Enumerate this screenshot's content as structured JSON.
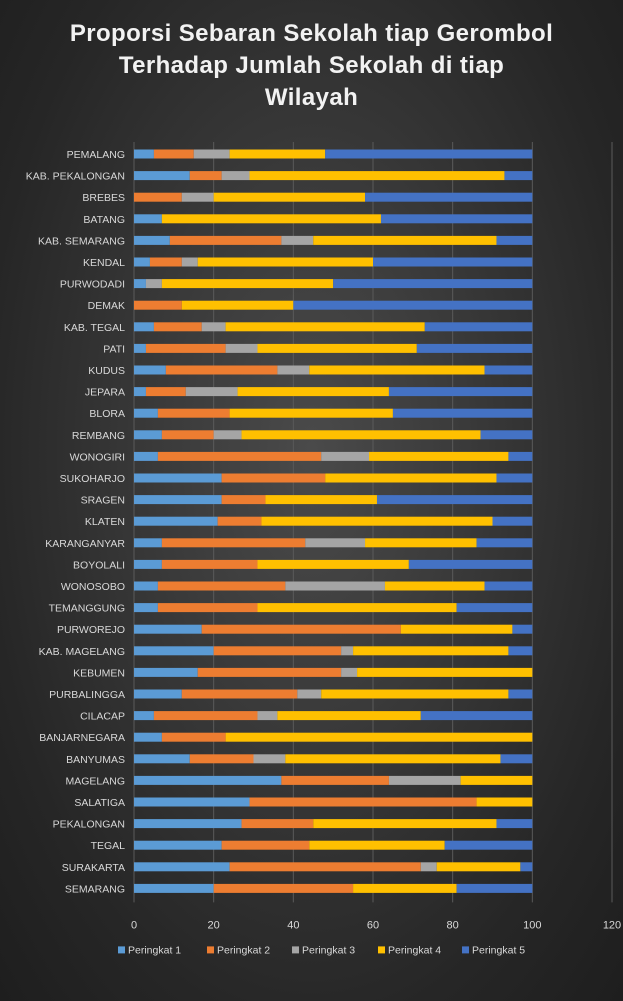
{
  "chart_data": {
    "type": "bar",
    "orientation": "horizontal",
    "stacked": true,
    "title": [
      "Proporsi Sebaran Sekolah tiap Gerombol",
      "Terhadap Jumlah Sekolah di tiap",
      "Wilayah"
    ],
    "xlabel": "",
    "ylabel": "",
    "xlim": [
      0,
      120
    ],
    "x_ticks": [
      0,
      20,
      40,
      60,
      80,
      100,
      120
    ],
    "grid": "vertical",
    "legend_position": "bottom",
    "categories": [
      "PEMALANG",
      "KAB. PEKALONGAN",
      "BREBES",
      "BATANG",
      "KAB. SEMARANG",
      "KENDAL",
      "PURWODADI",
      "DEMAK",
      "KAB. TEGAL",
      "PATI",
      "KUDUS",
      "JEPARA",
      "BLORA",
      "REMBANG",
      "WONOGIRI",
      "SUKOHARJO",
      "SRAGEN",
      "KLATEN",
      "KARANGANYAR",
      "BOYOLALI",
      "WONOSOBO",
      "TEMANGGUNG",
      "PURWOREJO",
      "KAB. MAGELANG",
      "KEBUMEN",
      "PURBALINGGA",
      "CILACAP",
      "BANJARNEGARA",
      "BANYUMAS",
      "MAGELANG",
      "SALATIGA",
      "PEKALONGAN",
      "TEGAL",
      "SURAKARTA",
      "SEMARANG"
    ],
    "series": [
      {
        "name": "Peringkat 1",
        "color": "#5b9bd5",
        "values": [
          5,
          14,
          0,
          7,
          9,
          4,
          3,
          0,
          5,
          3,
          8,
          3,
          6,
          7,
          6,
          22,
          22,
          21,
          7,
          7,
          6,
          6,
          17,
          20,
          16,
          12,
          5,
          7,
          14,
          37,
          29,
          27,
          22,
          24,
          20
        ]
      },
      {
        "name": "Peringkat 2",
        "color": "#ed7d31",
        "values": [
          10,
          8,
          12,
          0,
          28,
          8,
          0,
          12,
          12,
          20,
          28,
          10,
          18,
          13,
          41,
          26,
          11,
          11,
          36,
          24,
          32,
          25,
          50,
          32,
          36,
          29,
          26,
          16,
          16,
          27,
          57,
          18,
          22,
          48,
          35
        ]
      },
      {
        "name": "Peringkat 3",
        "color": "#a5a5a5",
        "values": [
          9,
          7,
          8,
          0,
          8,
          4,
          4,
          0,
          6,
          8,
          8,
          13,
          0,
          7,
          12,
          0,
          0,
          0,
          15,
          0,
          25,
          0,
          0,
          3,
          4,
          6,
          5,
          0,
          8,
          18,
          0,
          0,
          0,
          4,
          0
        ]
      },
      {
        "name": "Peringkat 4",
        "color": "#ffc000",
        "values": [
          24,
          64,
          38,
          55,
          46,
          44,
          43,
          28,
          50,
          40,
          44,
          38,
          41,
          60,
          35,
          43,
          28,
          58,
          28,
          38,
          25,
          50,
          28,
          39,
          44,
          47,
          36,
          77,
          54,
          18,
          14,
          46,
          34,
          21,
          26
        ]
      },
      {
        "name": "Peringkat 5",
        "color": "#4472c4",
        "values": [
          52,
          7,
          42,
          38,
          9,
          40,
          50,
          60,
          27,
          29,
          12,
          36,
          35,
          13,
          6,
          9,
          39,
          10,
          14,
          31,
          12,
          19,
          5,
          6,
          0,
          6,
          28,
          0,
          8,
          0,
          0,
          9,
          22,
          3,
          19
        ]
      }
    ]
  }
}
